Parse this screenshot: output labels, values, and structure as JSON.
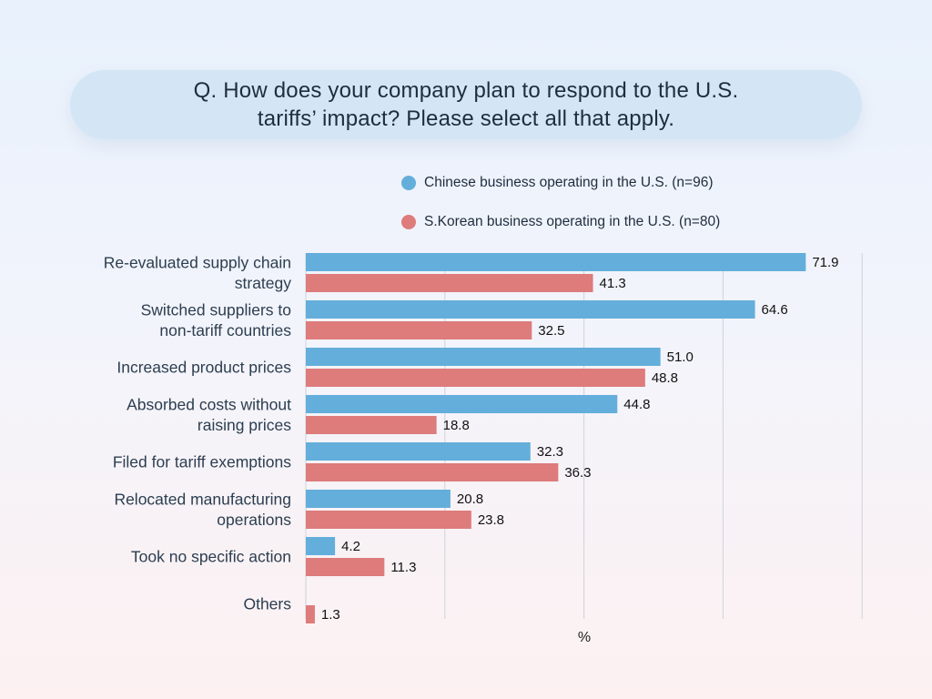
{
  "question": "Q.  How does your company plan to respond to the U.S. tariffs’ impact? Please select all that apply.",
  "colors": {
    "chinese": "#64aedb",
    "korean": "#de7b7b",
    "grid": "#cfd3d8"
  },
  "chart_data": {
    "type": "bar",
    "orientation": "horizontal",
    "categories": [
      [
        "Re-evaluated supply chain",
        "strategy"
      ],
      [
        "Switched suppliers to",
        "non-tariff countries"
      ],
      [
        "Increased product prices"
      ],
      [
        "Absorbed costs without",
        "raising prices"
      ],
      [
        "Filed for tariff exemptions"
      ],
      [
        "Relocated manufacturing",
        "operations"
      ],
      [
        "Took no specific action"
      ],
      [
        "Others"
      ]
    ],
    "series": [
      {
        "name": "Chinese business operating in the U.S. (n=96)",
        "values": [
          71.9,
          64.6,
          51.0,
          44.8,
          32.3,
          20.8,
          4.2,
          null
        ]
      },
      {
        "name": "S.Korean business operating in the U.S. (n=80)",
        "values": [
          41.3,
          32.5,
          48.8,
          18.8,
          36.3,
          23.8,
          11.3,
          1.3
        ]
      }
    ],
    "xlabel": "%",
    "xlim": [
      0,
      80
    ],
    "grid": true,
    "legend": "top"
  }
}
